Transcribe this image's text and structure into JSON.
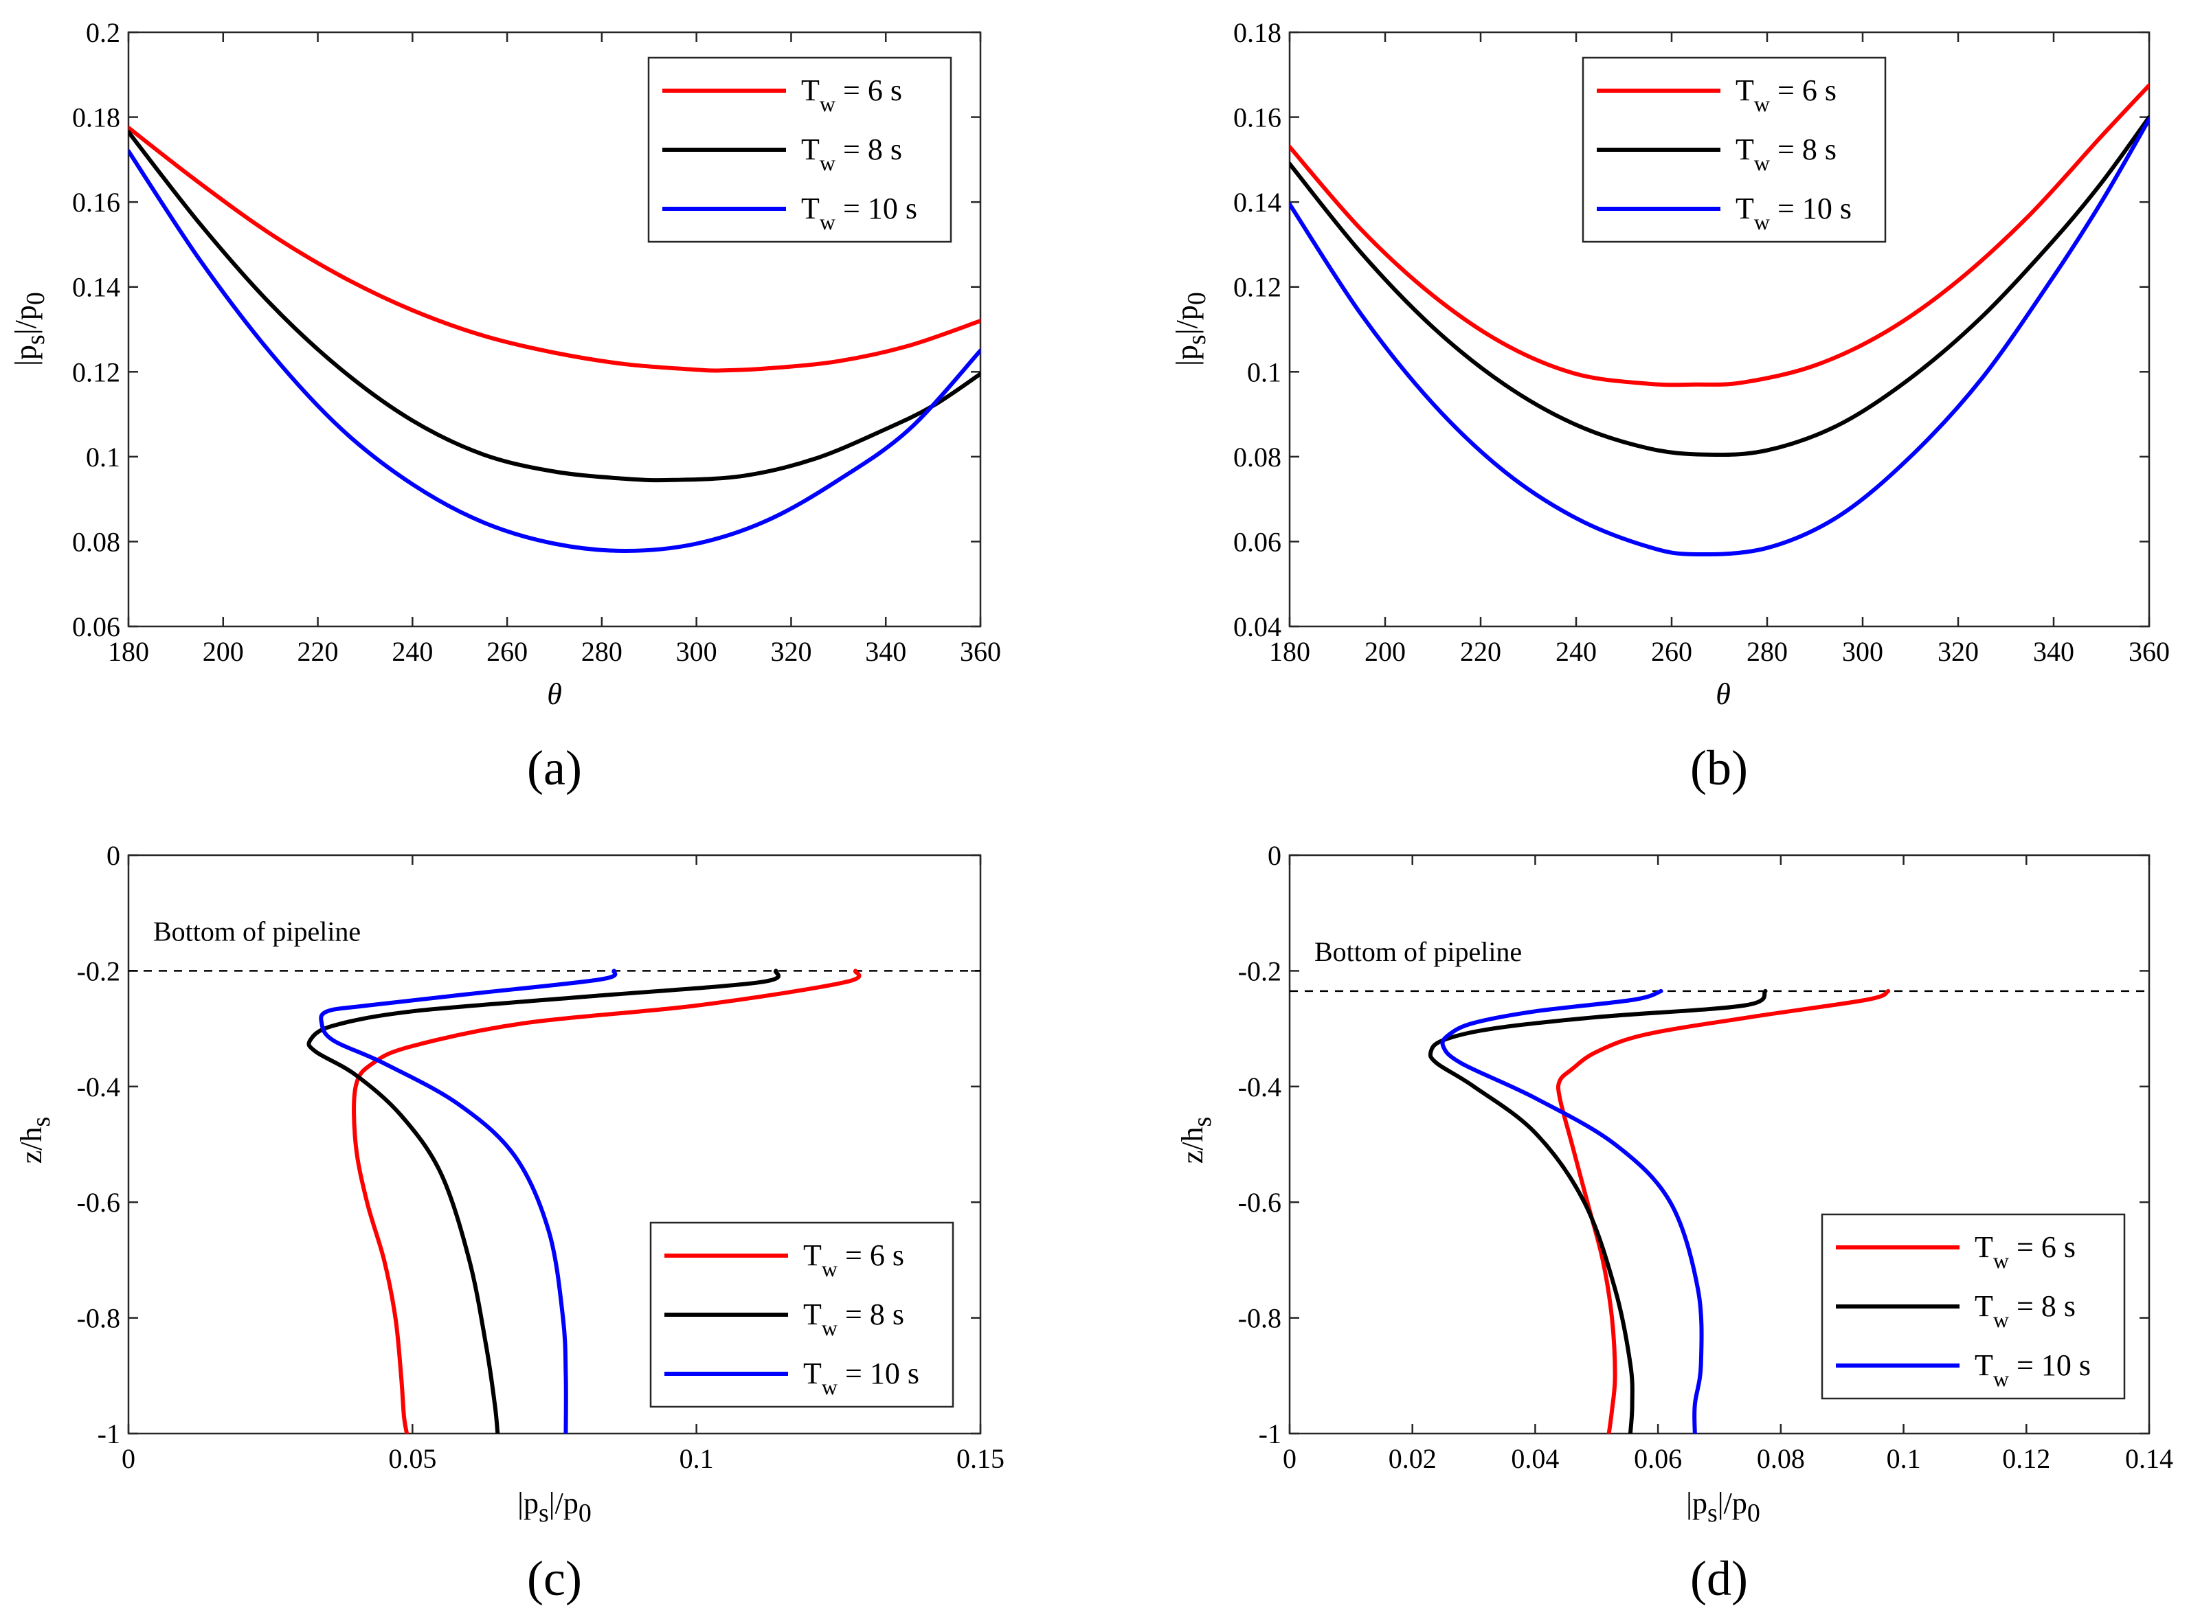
{
  "chart_data": [
    {
      "id": "a",
      "type": "line",
      "panel_label": "(a)",
      "xlabel": "θ",
      "ylabel": {
        "base": "|p",
        "sub1": "s",
        "mid": "|/p",
        "sub2": "0"
      },
      "xlim": [
        180,
        360
      ],
      "ylim": [
        0.06,
        0.2
      ],
      "xticks": [
        180,
        200,
        220,
        240,
        260,
        280,
        300,
        320,
        340,
        360
      ],
      "yticks": [
        0.06,
        0.08,
        0.1,
        0.12,
        0.14,
        0.16,
        0.18,
        0.2
      ],
      "xtick_labels": [
        "180",
        "200",
        "220",
        "240",
        "260",
        "280",
        "300",
        "320",
        "340",
        "360"
      ],
      "ytick_labels": [
        "0.06",
        "0.08",
        "0.1",
        "0.12",
        "0.14",
        "0.16",
        "0.18",
        "0.2"
      ],
      "legend_position": "top-right",
      "series": [
        {
          "name": "T_w = 6 s",
          "label": {
            "pre": "T",
            "sub": "w",
            "post": " = 6 s"
          },
          "color": "#ff0000",
          "x": [
            180,
            195,
            210,
            225,
            240,
            255,
            270,
            285,
            300,
            305,
            315,
            330,
            345,
            360
          ],
          "y": [
            0.1775,
            0.1645,
            0.1525,
            0.1425,
            0.1345,
            0.1285,
            0.1245,
            0.1218,
            0.1205,
            0.1203,
            0.1208,
            0.1225,
            0.1262,
            0.132
          ]
        },
        {
          "name": "T_w = 8 s",
          "label": {
            "pre": "T",
            "sub": "w",
            "post": " = 8 s"
          },
          "color": "#000000",
          "x": [
            180,
            195,
            210,
            225,
            240,
            255,
            270,
            285,
            295,
            310,
            325,
            340,
            350,
            360
          ],
          "y": [
            0.1765,
            0.155,
            0.136,
            0.1205,
            0.1085,
            0.1005,
            0.0965,
            0.0948,
            0.0945,
            0.0955,
            0.0995,
            0.1065,
            0.112,
            0.1195
          ]
        },
        {
          "name": "T_w = 10 s",
          "label": {
            "pre": "T",
            "sub": "w",
            "post": " = 10 s"
          },
          "color": "#0000ff",
          "x": [
            180,
            195,
            210,
            225,
            240,
            255,
            270,
            285,
            300,
            315,
            330,
            345,
            360
          ],
          "y": [
            0.172,
            0.1465,
            0.1245,
            0.1065,
            0.0935,
            0.0845,
            0.0795,
            0.0778,
            0.0795,
            0.085,
            0.0945,
            0.1065,
            0.125
          ]
        }
      ]
    },
    {
      "id": "b",
      "type": "line",
      "panel_label": "(b)",
      "xlabel": "θ",
      "ylabel": {
        "base": "|p",
        "sub1": "s",
        "mid": "|/p",
        "sub2": "0"
      },
      "xlim": [
        180,
        360
      ],
      "ylim": [
        0.04,
        0.18
      ],
      "xticks": [
        180,
        200,
        220,
        240,
        260,
        280,
        300,
        320,
        340,
        360
      ],
      "yticks": [
        0.04,
        0.06,
        0.08,
        0.1,
        0.12,
        0.14,
        0.16,
        0.18
      ],
      "xtick_labels": [
        "180",
        "200",
        "220",
        "240",
        "260",
        "280",
        "300",
        "320",
        "340",
        "360"
      ],
      "ytick_labels": [
        "0.04",
        "0.06",
        "0.08",
        "0.1",
        "0.12",
        "0.14",
        "0.16",
        "0.18"
      ],
      "legend_position": "top-left",
      "series": [
        {
          "name": "T_w = 6 s",
          "label": {
            "pre": "T",
            "sub": "w",
            "post": " = 6 s"
          },
          "color": "#ff0000",
          "x": [
            180,
            195,
            210,
            225,
            240,
            255,
            265,
            275,
            290,
            305,
            320,
            335,
            350,
            360
          ],
          "y": [
            0.153,
            0.1335,
            0.118,
            0.1065,
            0.0995,
            0.0972,
            0.097,
            0.0975,
            0.1015,
            0.1095,
            0.1215,
            0.137,
            0.1555,
            0.1675
          ]
        },
        {
          "name": "T_w = 8 s",
          "label": {
            "pre": "T",
            "sub": "w",
            "post": " = 8 s"
          },
          "color": "#000000",
          "x": [
            180,
            195,
            210,
            225,
            240,
            255,
            267,
            280,
            295,
            310,
            325,
            340,
            350,
            360
          ],
          "y": [
            0.149,
            0.128,
            0.1105,
            0.097,
            0.0875,
            0.082,
            0.0805,
            0.0815,
            0.0875,
            0.0985,
            0.113,
            0.131,
            0.1445,
            0.16
          ]
        },
        {
          "name": "T_w = 10 s",
          "label": {
            "pre": "T",
            "sub": "w",
            "post": " = 10 s"
          },
          "color": "#0000ff",
          "x": [
            180,
            195,
            210,
            225,
            240,
            255,
            265,
            280,
            295,
            310,
            325,
            340,
            350,
            360
          ],
          "y": [
            0.1395,
            0.1135,
            0.0925,
            0.0765,
            0.0655,
            0.0588,
            0.057,
            0.0585,
            0.066,
            0.08,
            0.0985,
            0.1225,
            0.14,
            0.1595
          ]
        }
      ]
    },
    {
      "id": "c",
      "type": "line",
      "panel_label": "(c)",
      "xlabel": {
        "base": "|p",
        "sub1": "s",
        "mid": "|/p",
        "sub2": "0"
      },
      "ylabel": {
        "base": "z/h",
        "sub1": "s"
      },
      "xlim": [
        0,
        0.15
      ],
      "ylim": [
        -1,
        0
      ],
      "xticks": [
        0,
        0.05,
        0.1,
        0.15
      ],
      "yticks": [
        -1,
        -0.8,
        -0.6,
        -0.4,
        -0.2,
        0
      ],
      "xtick_labels": [
        "0",
        "0.05",
        "0.1",
        "0.15"
      ],
      "ytick_labels": [
        "-1",
        "-0.8",
        "-0.6",
        "-0.4",
        "-0.2",
        "0"
      ],
      "reference_line": {
        "y": -0.2,
        "style": "dashed"
      },
      "annotation": "Bottom of pipeline",
      "legend_position": "bottom-right",
      "series": [
        {
          "name": "T_w = 6 s",
          "label": {
            "pre": "T",
            "sub": "w",
            "post": " = 6 s"
          },
          "color": "#ff0000",
          "x": [
            0.128,
            0.126,
            0.1,
            0.07,
            0.05,
            0.043,
            0.04,
            0.04,
            0.042,
            0.045,
            0.047,
            0.048,
            0.0485,
            0.049
          ],
          "y": [
            -0.2,
            -0.22,
            -0.26,
            -0.29,
            -0.33,
            -0.36,
            -0.4,
            -0.5,
            -0.6,
            -0.7,
            -0.8,
            -0.9,
            -0.97,
            -1
          ]
        },
        {
          "name": "T_w = 8 s",
          "label": {
            "pre": "T",
            "sub": "w",
            "post": " = 8 s"
          },
          "color": "#000000",
          "x": [
            0.114,
            0.111,
            0.08,
            0.05,
            0.036,
            0.032,
            0.033,
            0.04,
            0.048,
            0.055,
            0.06,
            0.063,
            0.0645,
            0.065
          ],
          "y": [
            -0.2,
            -0.22,
            -0.245,
            -0.27,
            -0.295,
            -0.32,
            -0.34,
            -0.38,
            -0.45,
            -0.55,
            -0.7,
            -0.85,
            -0.95,
            -1
          ]
        },
        {
          "name": "T_w = 10 s",
          "label": {
            "pre": "T",
            "sub": "w",
            "post": " = 10 s"
          },
          "color": "#0000ff",
          "x": [
            0.0855,
            0.083,
            0.06,
            0.042,
            0.035,
            0.034,
            0.036,
            0.045,
            0.058,
            0.068,
            0.074,
            0.0765,
            0.077,
            0.077
          ],
          "y": [
            -0.2,
            -0.215,
            -0.24,
            -0.26,
            -0.27,
            -0.29,
            -0.32,
            -0.36,
            -0.43,
            -0.52,
            -0.65,
            -0.8,
            -0.9,
            -1
          ]
        }
      ]
    },
    {
      "id": "d",
      "type": "line",
      "panel_label": "(d)",
      "xlabel": {
        "base": "|p",
        "sub1": "s",
        "mid": "|/p",
        "sub2": "0"
      },
      "ylabel": {
        "base": "z/h",
        "sub1": "s"
      },
      "xlim": [
        0,
        0.14
      ],
      "ylim": [
        -1,
        0
      ],
      "xticks": [
        0,
        0.02,
        0.04,
        0.06,
        0.08,
        0.1,
        0.12,
        0.14
      ],
      "yticks": [
        -1,
        -0.8,
        -0.6,
        -0.4,
        -0.2,
        0
      ],
      "xtick_labels": [
        "0",
        "0.02",
        "0.04",
        "0.06",
        "0.08",
        "0.1",
        "0.12",
        "0.14"
      ],
      "ytick_labels": [
        "-1",
        "-0.8",
        "-0.6",
        "-0.4",
        "-0.2",
        "0"
      ],
      "reference_line": {
        "y": -0.235,
        "style": "dashed"
      },
      "annotation": "Bottom of pipeline",
      "legend_position": "bottom-right",
      "series": [
        {
          "name": "T_w = 6 s",
          "label": {
            "pre": "T",
            "sub": "w",
            "post": " = 6 s"
          },
          "color": "#ff0000",
          "x": [
            0.0975,
            0.094,
            0.075,
            0.058,
            0.05,
            0.046,
            0.044,
            0.044,
            0.046,
            0.0485,
            0.051,
            0.0525,
            0.053,
            0.0525,
            0.052
          ],
          "y": [
            -0.235,
            -0.25,
            -0.28,
            -0.31,
            -0.34,
            -0.37,
            -0.39,
            -0.42,
            -0.5,
            -0.6,
            -0.7,
            -0.8,
            -0.9,
            -0.96,
            -1
          ]
        },
        {
          "name": "T_w = 8 s",
          "label": {
            "pre": "T",
            "sub": "w",
            "post": " = 8 s"
          },
          "color": "#000000",
          "x": [
            0.0775,
            0.074,
            0.05,
            0.033,
            0.025,
            0.023,
            0.024,
            0.03,
            0.04,
            0.048,
            0.053,
            0.0555,
            0.0558,
            0.0555
          ],
          "y": [
            -0.235,
            -0.26,
            -0.28,
            -0.3,
            -0.32,
            -0.34,
            -0.36,
            -0.4,
            -0.48,
            -0.6,
            -0.75,
            -0.88,
            -0.95,
            -1
          ]
        },
        {
          "name": "T_w = 10 s",
          "label": {
            "pre": "T",
            "sub": "w",
            "post": " = 10 s"
          },
          "color": "#0000ff",
          "x": [
            0.0605,
            0.056,
            0.04,
            0.03,
            0.026,
            0.025,
            0.028,
            0.04,
            0.053,
            0.062,
            0.0665,
            0.067,
            0.066,
            0.066
          ],
          "y": [
            -0.235,
            -0.25,
            -0.27,
            -0.29,
            -0.31,
            -0.33,
            -0.36,
            -0.42,
            -0.5,
            -0.6,
            -0.75,
            -0.88,
            -0.95,
            -1
          ]
        }
      ]
    }
  ]
}
